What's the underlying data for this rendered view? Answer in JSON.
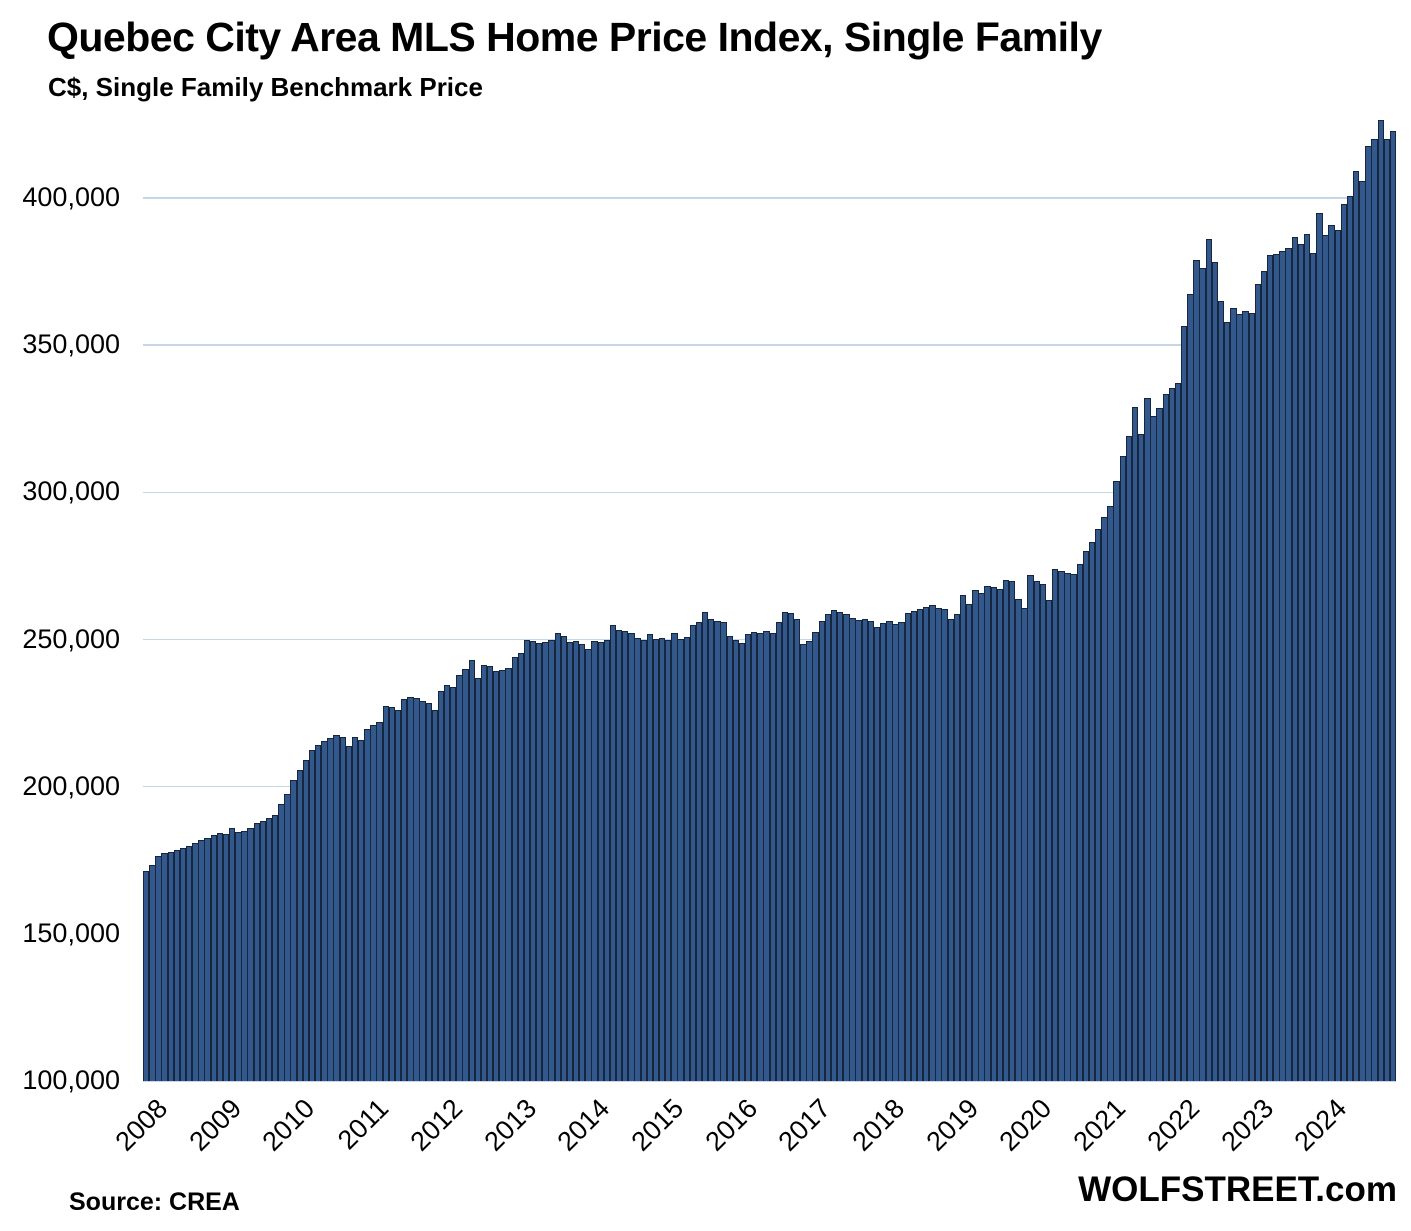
{
  "header": {
    "title": "Quebec City Area MLS Home Price Index, Single Family",
    "subtitle": "C$, Single Family Benchmark Price"
  },
  "footer": {
    "source": "Source: CREA",
    "brand": "WOLFSTREET.com"
  },
  "colors": {
    "bar_fill": "#33598C",
    "bar_border": "#16263F",
    "gridline": "#C6D5E7",
    "text": "#000000",
    "background": "#FFFFFF"
  },
  "chart_data": {
    "type": "bar",
    "title": "Quebec City Area MLS Home Price Index, Single Family",
    "subtitle": "C$, Single Family Benchmark Price",
    "currency": "C$",
    "frequency": "monthly",
    "start": "2008-01",
    "end": "2024-12",
    "grid": "horizontal",
    "legend": "none",
    "ylim": [
      100000,
      430000
    ],
    "yticks": [
      100000,
      150000,
      200000,
      250000,
      300000,
      350000,
      400000
    ],
    "ytick_labels": [
      "100,000",
      "150,000",
      "200,000",
      "250,000",
      "300,000",
      "350,000",
      "400,000"
    ],
    "year_labels": [
      "2008",
      "2009",
      "2010",
      "2011",
      "2012",
      "2013",
      "2014",
      "2015",
      "2016",
      "2017",
      "2018",
      "2019",
      "2020",
      "2021",
      "2022",
      "2023",
      "2024"
    ],
    "series": [
      {
        "name": "Single Family Benchmark Price",
        "values": [
          171500,
          173300,
          176400,
          177300,
          177800,
          178400,
          179200,
          180000,
          180800,
          181800,
          182700,
          183500,
          184300,
          184000,
          186100,
          184500,
          185000,
          186000,
          187500,
          188400,
          189200,
          190500,
          194000,
          197500,
          202300,
          205700,
          209000,
          212500,
          214200,
          215600,
          216500,
          217600,
          216800,
          213900,
          217000,
          215900,
          219500,
          221000,
          222000,
          227300,
          226900,
          226100,
          229800,
          230300,
          230100,
          229200,
          228400,
          226100,
          232500,
          234500,
          234000,
          238000,
          240000,
          243200,
          236900,
          241500,
          240900,
          239200,
          239800,
          240300,
          244100,
          245500,
          250000,
          249400,
          248900,
          249100,
          249800,
          252300,
          251100,
          249100,
          249400,
          248600,
          246800,
          249400,
          249100,
          249800,
          254800,
          253200,
          252900,
          252300,
          250600,
          250000,
          252000,
          250200,
          250600,
          249800,
          252300,
          250200,
          250800,
          254800,
          255900,
          259300,
          256800,
          256200,
          255900,
          251100,
          250000,
          248900,
          251700,
          252500,
          252300,
          252900,
          252300,
          255900,
          259300,
          258900,
          257000,
          248600,
          249400,
          252500,
          256200,
          258500,
          260000,
          259300,
          258500,
          257300,
          256600,
          257000,
          256200,
          254300,
          255600,
          256200,
          255400,
          255900,
          258900,
          259700,
          260500,
          261200,
          261600,
          260800,
          260300,
          257000,
          258500,
          265000,
          261900,
          266800,
          265700,
          268200,
          268000,
          267300,
          270200,
          269900,
          263900,
          260800,
          271800,
          269900,
          268800,
          263400,
          274100,
          273300,
          272700,
          272200,
          275600,
          280100,
          283000,
          287500,
          291500,
          295400,
          304000,
          312500,
          319100,
          329000,
          319900,
          332100,
          326000,
          328500,
          333500,
          335500,
          337000,
          356600,
          367300,
          379000,
          376100,
          386100,
          378200,
          365000,
          358000,
          362700,
          360500,
          361600,
          360900,
          370700,
          375200,
          380700,
          380900,
          382100,
          383000,
          386900,
          384500,
          387700,
          381300,
          394900,
          387500,
          390700,
          389200,
          398000,
          400600,
          409300,
          405900,
          417600,
          420200,
          426400,
          420200,
          422700
        ]
      }
    ]
  }
}
